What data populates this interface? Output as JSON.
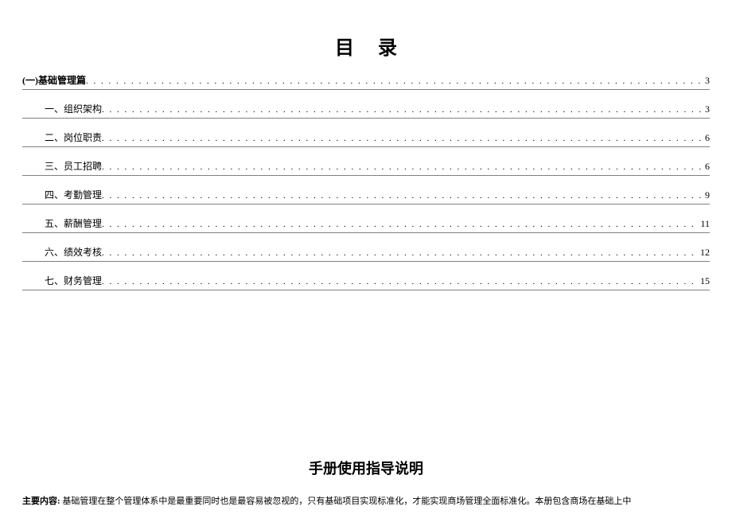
{
  "title": "目录",
  "toc": [
    {
      "label": "(一)基础管理篇",
      "page": "3",
      "level": 0
    },
    {
      "label": "一、组织架构",
      "page": "3",
      "level": 1
    },
    {
      "label": "二、岗位职责",
      "page": "6",
      "level": 1
    },
    {
      "label": "三、员工招聘",
      "page": "6",
      "level": 1
    },
    {
      "label": "四、考勤管理",
      "page": "9",
      "level": 1
    },
    {
      "label": "五、薪酬管理",
      "page": "11",
      "level": 1
    },
    {
      "label": "六、绩效考核",
      "page": "12",
      "level": 1
    },
    {
      "label": "七、财务管理",
      "page": "15",
      "level": 1
    }
  ],
  "section2_title": "手册使用指导说明",
  "body": {
    "lead": "主要内容:",
    "text": " 基础管理在整个管理体系中是最重要同时也是最容易被忽视的，只有基础项目实现标准化，才能实现商场管理全面标准化。本册包含商场在基础上中"
  },
  "style": {
    "border_color": "#808080",
    "dot_fill": ". . . . . . . . . . . . . . . . . . . . . . . . . . . . . . . . . . . . . . . . . . . . . . . . . . . . . . . . . . . . . . . . . . . . . . . . . . . . . . . . . . . . . . . . . . . . . . . . . . . . . . . . . . . . . . . . . . . . . . . . . . . . . . . . . . . . . . . . . . . . . . . . . . . . . . . . . . . . . . . . . . . . . . . . . . . . . . . . . . . . . . . . . . . . . . . . . . . . . . . ."
  }
}
